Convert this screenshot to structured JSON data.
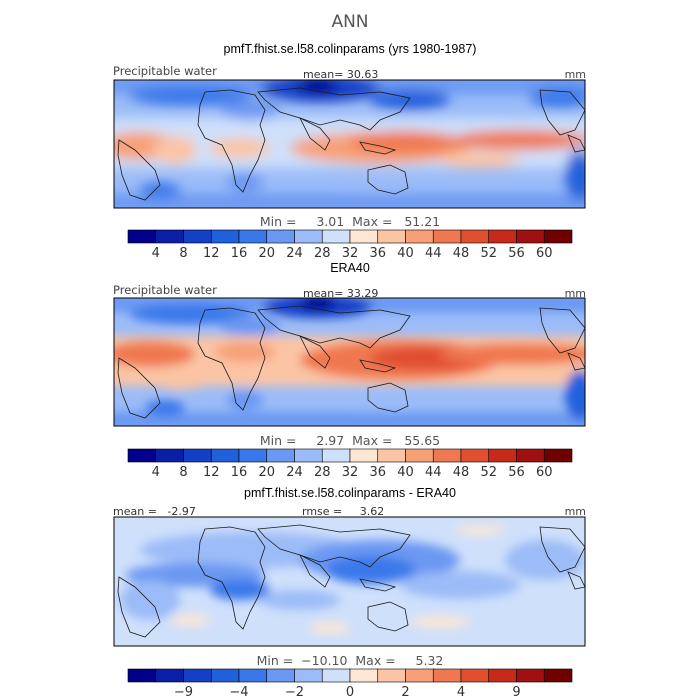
{
  "figure": {
    "title": "ANN"
  },
  "chart_data": [
    {
      "type": "heatmap",
      "title": "pmfT.fhist.se.l58.colinparams (yrs 1980-1987)",
      "variable": "Precipitable water",
      "units": "mm",
      "stat_left": "",
      "stat_mid": "mean=   30.63",
      "min_max": "Min =     3.01  Max =   51.21",
      "colorbar": {
        "levels": [
          "4",
          "8",
          "12",
          "16",
          "20",
          "24",
          "28",
          "32",
          "36",
          "40",
          "44",
          "48",
          "52",
          "56",
          "60"
        ],
        "colors": [
          "#00008c",
          "#0a1ea8",
          "#1440c8",
          "#2060dc",
          "#3a78ea",
          "#6a98f2",
          "#9bbcf8",
          "#cfe0fb",
          "#fde6d4",
          "#fbc4a4",
          "#f7a078",
          "#f07850",
          "#e05030",
          "#c82a1a",
          "#a01010",
          "#700000"
        ]
      },
      "field": "model"
    },
    {
      "type": "heatmap",
      "title": "ERA40",
      "variable": "Precipitable water",
      "units": "mm",
      "stat_left": "",
      "stat_mid": "mean=   33.29",
      "min_max": "Min =     2.97  Max =   55.65",
      "colorbar": {
        "levels": [
          "4",
          "8",
          "12",
          "16",
          "20",
          "24",
          "28",
          "32",
          "36",
          "40",
          "44",
          "48",
          "52",
          "56",
          "60"
        ],
        "colors": [
          "#00008c",
          "#0a1ea8",
          "#1440c8",
          "#2060dc",
          "#3a78ea",
          "#6a98f2",
          "#9bbcf8",
          "#cfe0fb",
          "#fde6d4",
          "#fbc4a4",
          "#f7a078",
          "#f07850",
          "#e05030",
          "#c82a1a",
          "#a01010",
          "#700000"
        ]
      },
      "field": "obs"
    },
    {
      "type": "heatmap",
      "title": "pmfT.fhist.se.l58.colinparams - ERA40",
      "variable": "",
      "units": "mm",
      "stat_left": "mean =   -2.97",
      "stat_mid": "rmse =     3.62",
      "min_max": "Min =  −10.10  Max =     5.32",
      "colorbar": {
        "levels": [
          "",
          "−9",
          "",
          "−4",
          "",
          "−2",
          "",
          "0",
          "",
          "2",
          "",
          "4",
          "",
          "9",
          ""
        ],
        "colors": [
          "#00008c",
          "#0a1ea8",
          "#1440c8",
          "#2060dc",
          "#3a78ea",
          "#6a98f2",
          "#9bbcf8",
          "#cfe0fb",
          "#fde6d4",
          "#fbc4a4",
          "#f7a078",
          "#f07850",
          "#e05030",
          "#c82a1a",
          "#a01010",
          "#700000"
        ]
      },
      "field": "diff"
    }
  ]
}
